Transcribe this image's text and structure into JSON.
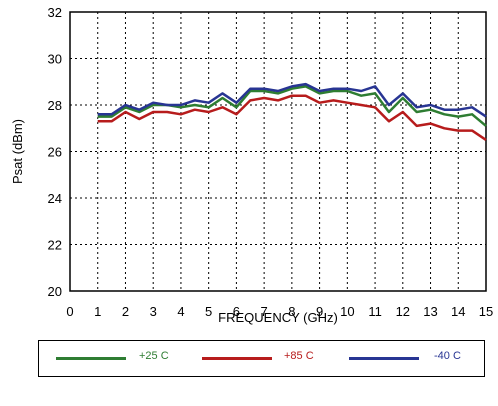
{
  "chart_data": {
    "type": "line",
    "title": "",
    "xlabel": "FREQUENCY (GHz)",
    "ylabel": "Psat (dBm)",
    "xlim": [
      0,
      15
    ],
    "ylim": [
      20,
      32
    ],
    "xticks": [
      "0",
      "1",
      "2",
      "3",
      "4",
      "5",
      "6",
      "7",
      "8",
      "9",
      "10",
      "11",
      "12",
      "13",
      "14",
      "15"
    ],
    "yticks": [
      "20",
      "22",
      "24",
      "26",
      "28",
      "30",
      "32"
    ],
    "grid": "dotted",
    "legend_position": "bottom",
    "series": [
      {
        "name": "+25 C",
        "color": "#2e7d32",
        "x": [
          1,
          1.5,
          2,
          2.5,
          3,
          3.5,
          4,
          4.5,
          5,
          5.5,
          6,
          6.5,
          7,
          7.5,
          8,
          8.5,
          9,
          9.5,
          10,
          10.5,
          11,
          11.5,
          12,
          12.5,
          13,
          13.5,
          14,
          14.5,
          15
        ],
        "y": [
          27.5,
          27.5,
          27.9,
          27.7,
          28.0,
          28.0,
          27.9,
          28.0,
          27.9,
          28.3,
          27.9,
          28.6,
          28.6,
          28.5,
          28.7,
          28.8,
          28.5,
          28.6,
          28.6,
          28.4,
          28.5,
          27.7,
          28.3,
          27.7,
          27.8,
          27.6,
          27.5,
          27.6,
          27.1
        ]
      },
      {
        "name": "+85 C",
        "color": "#b71c1c",
        "x": [
          1,
          1.5,
          2,
          2.5,
          3,
          3.5,
          4,
          4.5,
          5,
          5.5,
          6,
          6.5,
          7,
          7.5,
          8,
          8.5,
          9,
          9.5,
          10,
          10.5,
          11,
          11.5,
          12,
          12.5,
          13,
          13.5,
          14,
          14.5,
          15
        ],
        "y": [
          27.3,
          27.3,
          27.7,
          27.4,
          27.7,
          27.7,
          27.6,
          27.8,
          27.7,
          27.9,
          27.6,
          28.2,
          28.3,
          28.2,
          28.4,
          28.4,
          28.1,
          28.2,
          28.1,
          28.0,
          27.9,
          27.3,
          27.7,
          27.1,
          27.2,
          27.0,
          26.9,
          26.9,
          26.5
        ]
      },
      {
        "name": "-40 C",
        "color": "#283593",
        "x": [
          1,
          1.5,
          2,
          2.5,
          3,
          3.5,
          4,
          4.5,
          5,
          5.5,
          6,
          6.5,
          7,
          7.5,
          8,
          8.5,
          9,
          9.5,
          10,
          10.5,
          11,
          11.5,
          12,
          12.5,
          13,
          13.5,
          14,
          14.5,
          15
        ],
        "y": [
          27.6,
          27.6,
          28.0,
          27.8,
          28.1,
          28.0,
          28.0,
          28.2,
          28.1,
          28.5,
          28.1,
          28.7,
          28.7,
          28.6,
          28.8,
          28.9,
          28.6,
          28.7,
          28.7,
          28.6,
          28.8,
          28.0,
          28.5,
          27.9,
          28.0,
          27.8,
          27.8,
          27.9,
          27.5
        ]
      }
    ]
  }
}
